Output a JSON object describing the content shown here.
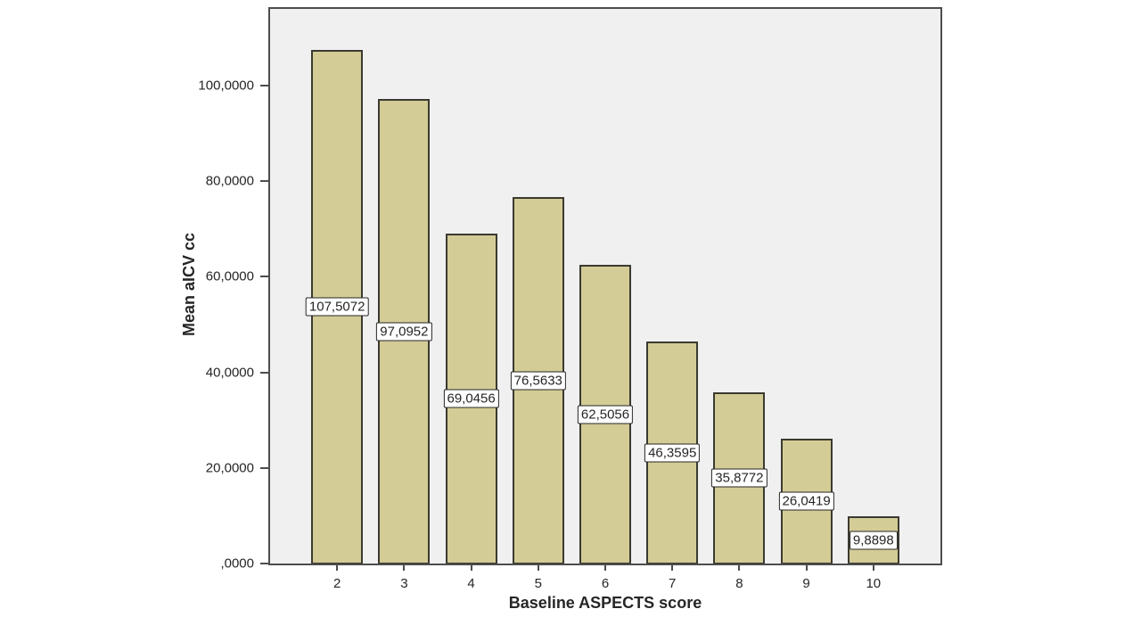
{
  "chart_data": {
    "type": "bar",
    "title": "",
    "xlabel": "Baseline ASPECTS score",
    "ylabel": "Mean aICV cc",
    "categories": [
      "2",
      "3",
      "4",
      "5",
      "6",
      "7",
      "8",
      "9",
      "10"
    ],
    "values": [
      107.5072,
      97.0952,
      69.0456,
      76.5633,
      62.5056,
      46.3595,
      35.8772,
      26.0419,
      9.8898
    ],
    "bar_labels": [
      "107,5072",
      "97,0952",
      "69,0456",
      "76,5633",
      "62,5056",
      "46,3595",
      "35,8772",
      "26,0419",
      "9,8898"
    ],
    "y_ticks": [
      {
        "value": 0,
        "label": ",0000"
      },
      {
        "value": 20,
        "label": "20,0000"
      },
      {
        "value": 40,
        "label": "40,0000"
      },
      {
        "value": 60,
        "label": "60,0000"
      },
      {
        "value": 80,
        "label": "80,0000"
      },
      {
        "value": 100,
        "label": "100,0000"
      }
    ],
    "ylim": [
      0,
      116
    ],
    "grid": false,
    "legend": null,
    "bar_label_position": "center-of-bar",
    "colors": {
      "bar_fill": "#d4cc96",
      "bar_border": "#3a3a30",
      "plot_bg": "#f0f0f0",
      "frame_border": "#4d4d4d",
      "text": "#262626",
      "label_box_bg": "#ffffff",
      "label_box_border": "#262626"
    }
  }
}
